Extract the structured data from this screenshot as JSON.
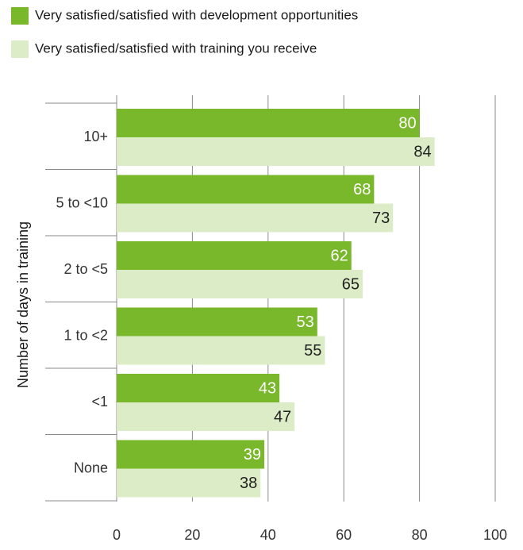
{
  "chart_data": {
    "type": "bar",
    "orientation": "horizontal",
    "ylabel": "Number of days in training",
    "xlabel": "",
    "xlim": [
      0,
      100
    ],
    "xticks": [
      0,
      20,
      40,
      60,
      80,
      100
    ],
    "grid": true,
    "legend_position": "top-left",
    "categories": [
      "10+",
      "5 to <10",
      "2 to <5",
      "1 to <2",
      "<1",
      "None"
    ],
    "series": [
      {
        "name": "Very satisfied/satisfied with development opportunities",
        "color": "#78b82a",
        "values": [
          80,
          68,
          62,
          53,
          43,
          39
        ]
      },
      {
        "name": "Very satisfied/satisfied with training you receive",
        "color": "#dcecc6",
        "values": [
          84,
          73,
          65,
          55,
          47,
          38
        ]
      }
    ]
  }
}
